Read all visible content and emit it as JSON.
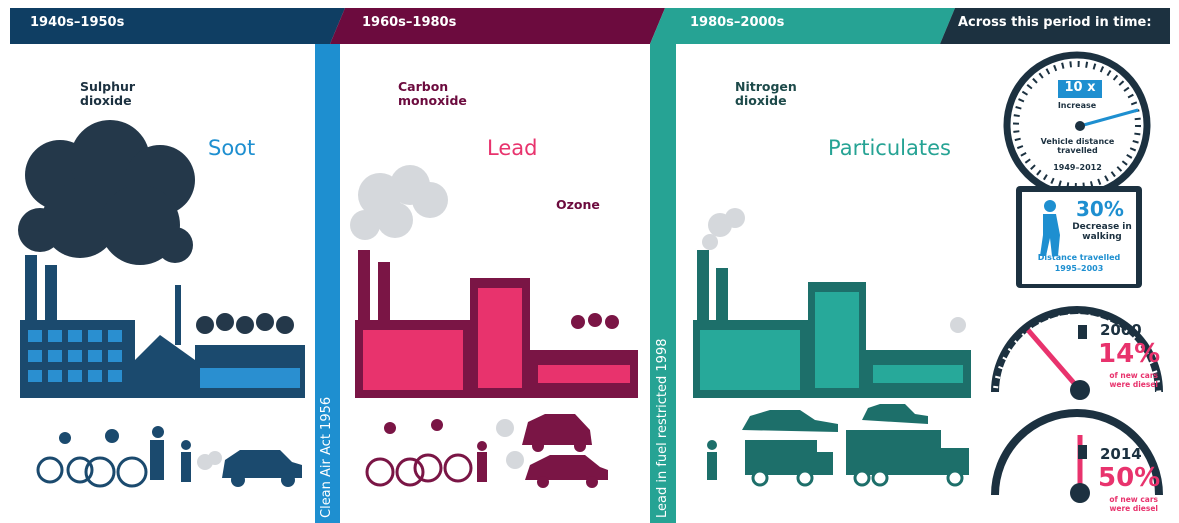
{
  "header": {
    "periods": [
      "1940s–1950s",
      "1960s–1980s",
      "1980s–2000s"
    ],
    "summary_title": "Across this period in time:"
  },
  "panels": [
    {
      "pollutants": [
        "Sulphur dioxide",
        "Soot"
      ]
    },
    {
      "pollutants": [
        "Carbon monoxide",
        "Lead",
        "Ozone"
      ]
    },
    {
      "pollutants": [
        "Nitrogen dioxide",
        "Particulates"
      ]
    }
  ],
  "dividers": [
    "Clean Air Act 1956",
    "Lead in fuel restricted 1998"
  ],
  "stats": {
    "vehicle_distance": {
      "value": "10 x",
      "label": "Increase",
      "caption": "Vehicle distance travelled",
      "years": "1949–2012"
    },
    "walking": {
      "value": "30%",
      "label": "Decrease in walking",
      "caption": "Distance travelled",
      "years": "1995–2003"
    },
    "diesel": [
      {
        "year": "2000",
        "value": "14%",
        "caption": "of new cars were diesel"
      },
      {
        "year": "2014",
        "value": "50%",
        "caption": "of new cars were diesel"
      }
    ]
  }
}
